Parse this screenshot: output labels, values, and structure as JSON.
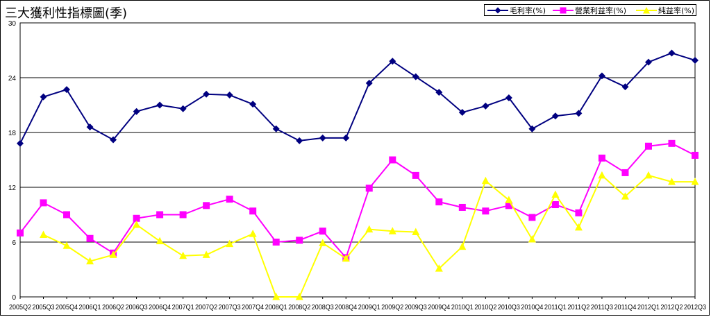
{
  "chart_data": {
    "type": "line",
    "title": "三大獲利性指標圖(季)",
    "categories": [
      "2005Q2",
      "2005Q3",
      "2005Q4",
      "2006Q1",
      "2006Q2",
      "2006Q3",
      "2006Q4",
      "2007Q1",
      "2007Q2",
      "2007Q3",
      "2007Q4",
      "2008Q1",
      "2008Q2",
      "2008Q3",
      "2008Q4",
      "2009Q1",
      "2009Q2",
      "2009Q3",
      "2009Q4",
      "2010Q1",
      "2010Q2",
      "2010Q3",
      "2010Q4",
      "2011Q1",
      "2011Q2",
      "2011Q3",
      "2011Q4",
      "2012Q1",
      "2012Q2",
      "2012Q3"
    ],
    "ylim": [
      0,
      30
    ],
    "yticks": [
      0,
      6,
      12,
      18,
      24,
      30
    ],
    "grid": true,
    "legend_position": "top-right",
    "series": [
      {
        "name": "毛利率(%)",
        "color": "#000080",
        "marker": "diamond",
        "values": [
          16.8,
          21.9,
          22.7,
          18.6,
          17.2,
          20.3,
          21.0,
          20.6,
          22.2,
          22.1,
          21.1,
          18.4,
          17.1,
          17.4,
          17.4,
          23.4,
          25.8,
          24.1,
          22.4,
          20.2,
          20.9,
          21.8,
          18.4,
          19.8,
          20.1,
          24.2,
          23.0,
          25.7,
          26.7,
          25.9
        ]
      },
      {
        "name": "營業利益率(%)",
        "color": "#FF00FF",
        "marker": "square",
        "values": [
          7.0,
          10.3,
          9.0,
          6.4,
          4.8,
          8.6,
          9.0,
          9.0,
          10.0,
          10.7,
          9.4,
          6.0,
          6.2,
          7.2,
          4.3,
          11.9,
          15.0,
          13.3,
          10.4,
          9.8,
          9.4,
          10.0,
          8.7,
          10.1,
          9.2,
          15.2,
          13.6,
          16.5,
          16.8,
          15.5
        ]
      },
      {
        "name": "純益率(%)",
        "color": "#FFFF00",
        "marker": "triangle",
        "values": [
          null,
          6.8,
          5.6,
          3.9,
          4.6,
          7.9,
          6.1,
          4.5,
          4.6,
          5.8,
          6.9,
          0.0,
          0.0,
          5.9,
          4.2,
          7.4,
          7.2,
          7.1,
          3.1,
          5.5,
          12.7,
          10.6,
          6.3,
          11.2,
          7.6,
          13.3,
          11.0,
          13.3,
          12.6,
          12.6
        ]
      }
    ]
  }
}
